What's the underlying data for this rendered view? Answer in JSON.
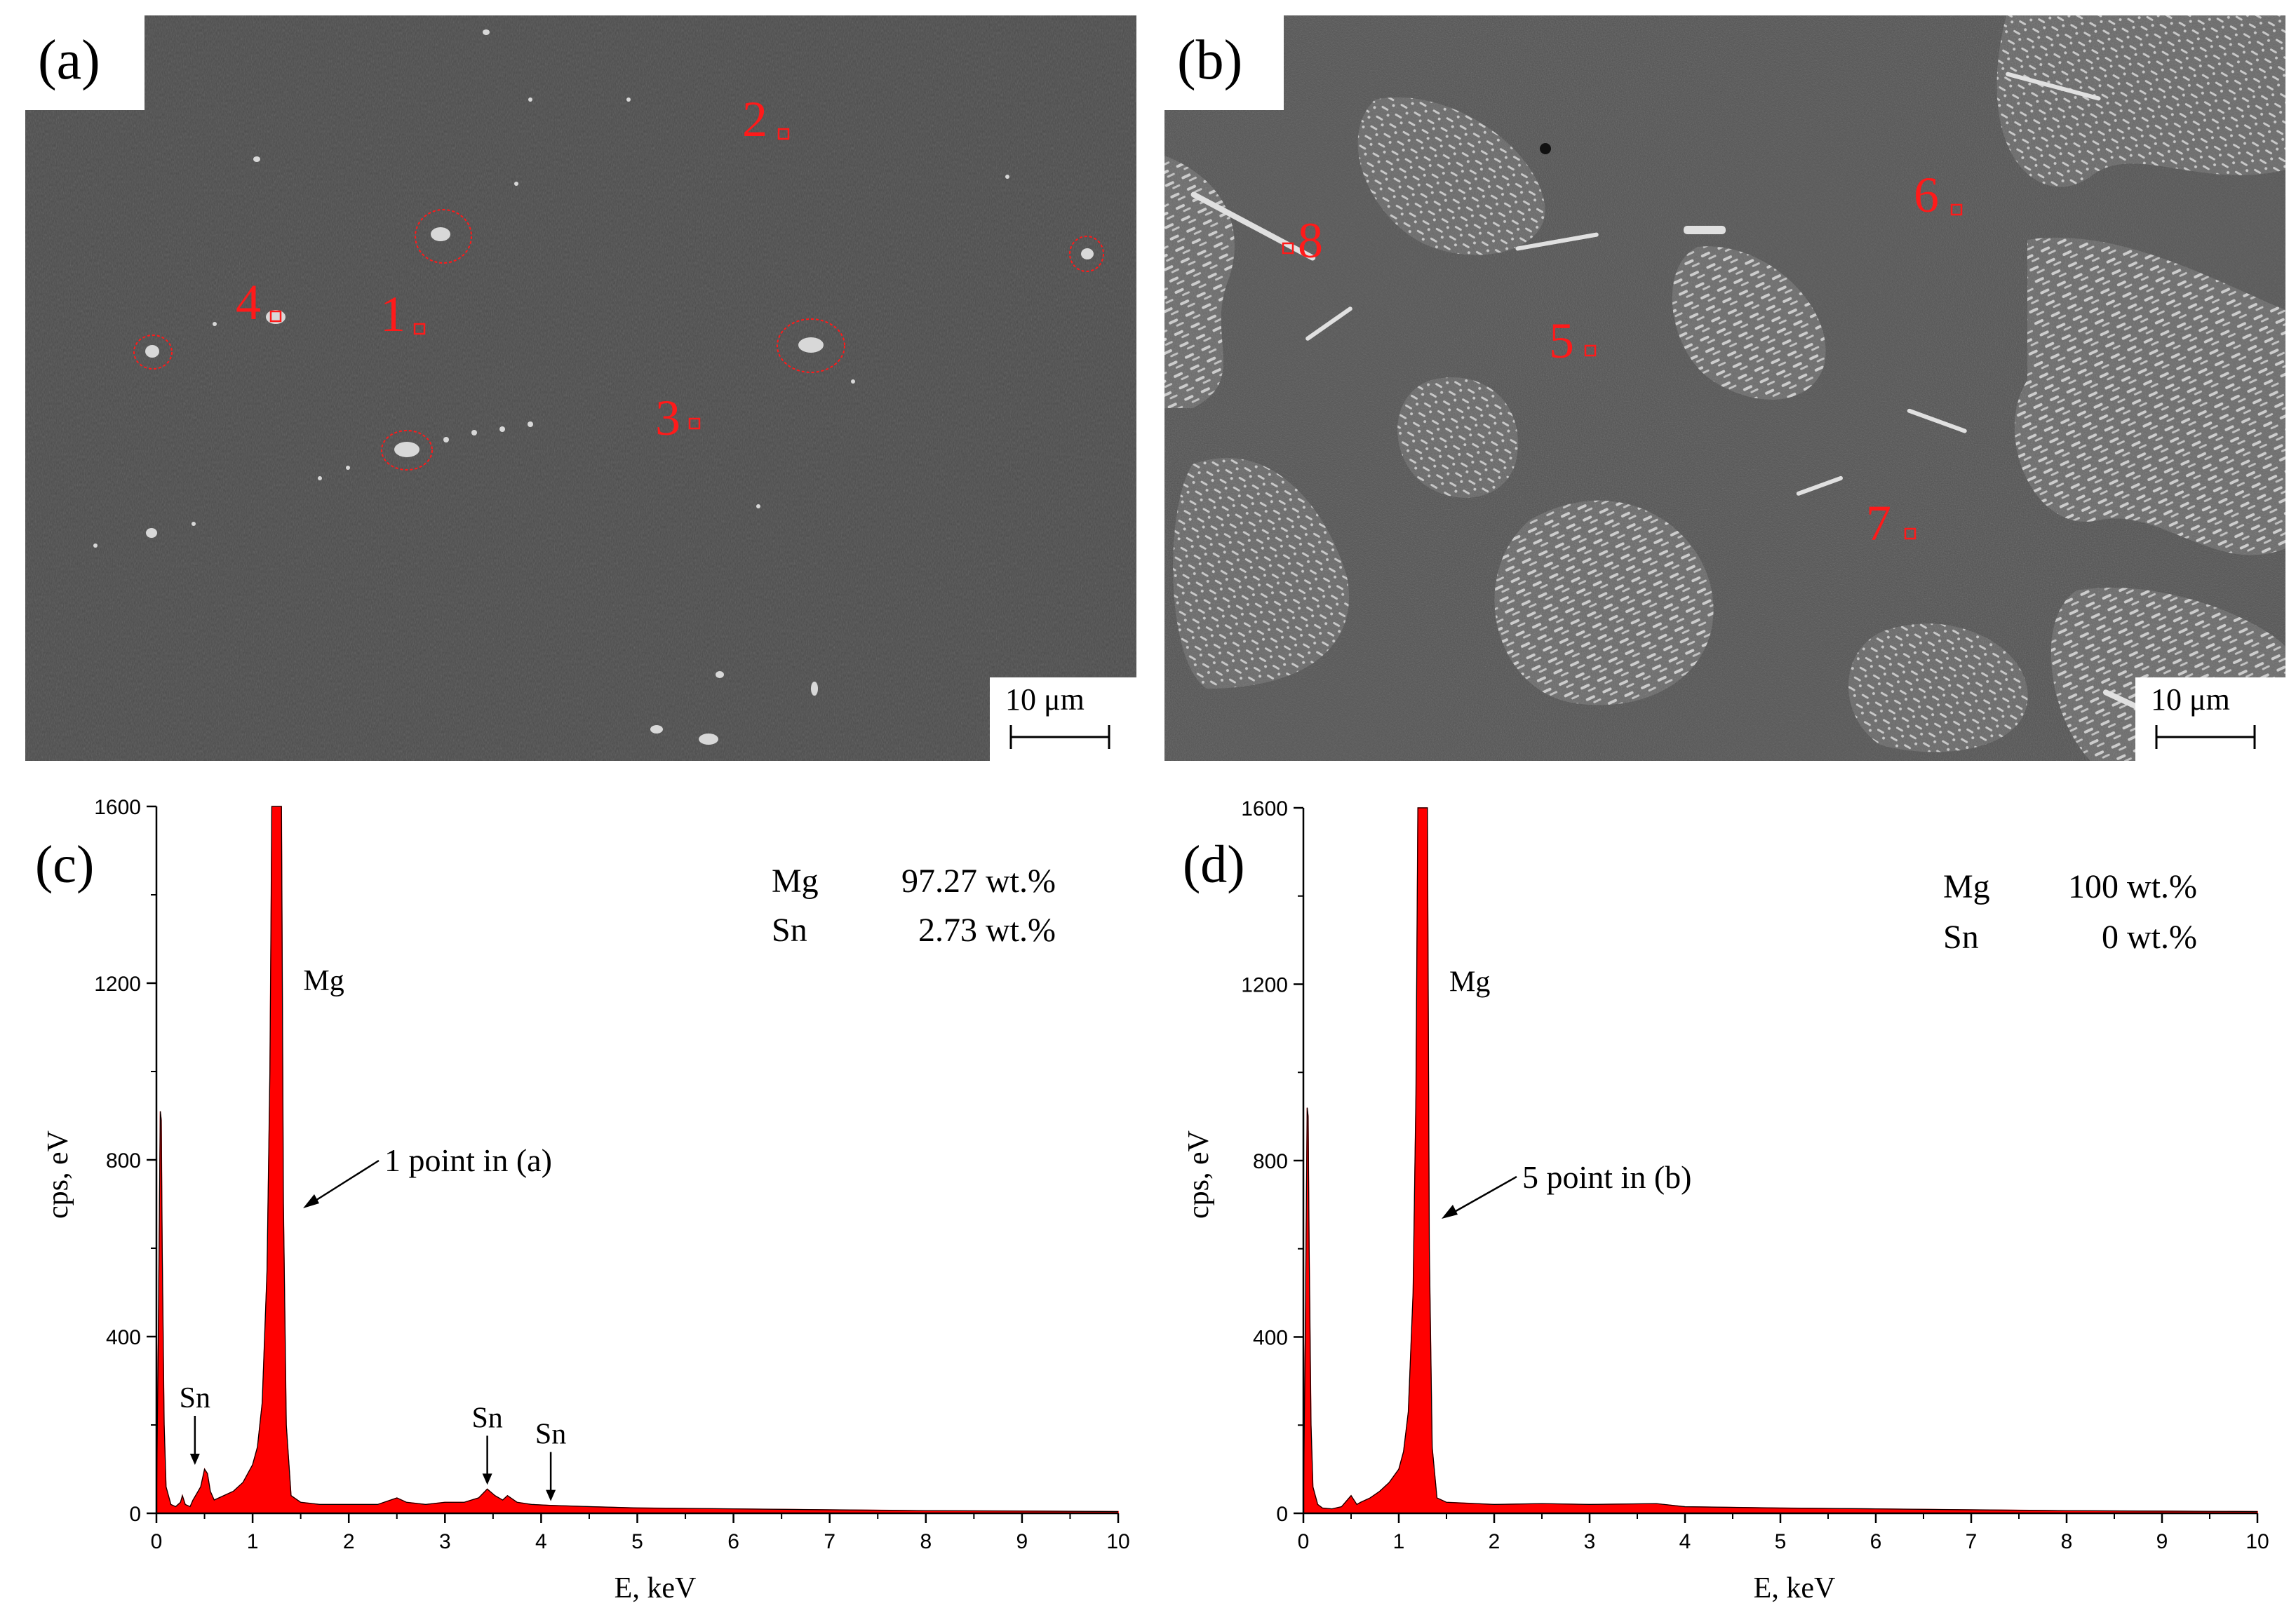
{
  "figure": {
    "panels": {
      "a": {
        "label": "(a)",
        "scale_bar": "10 μm",
        "points": [
          "1",
          "2",
          "3",
          "4"
        ]
      },
      "b": {
        "label": "(b)",
        "scale_bar": "10 μm",
        "points": [
          "5",
          "6",
          "7",
          "8"
        ]
      }
    },
    "colors": {
      "spectrum_fill": "#ff0000",
      "marker": "#ff1a1a",
      "sem_background": "#4b4b4b"
    }
  },
  "chart_data": [
    {
      "type": "area",
      "panel": "(c)",
      "xlabel": "E, keV",
      "ylabel": "cps, eV",
      "xlim": [
        0,
        10
      ],
      "ylim": [
        0,
        1600
      ],
      "x_ticks": [
        0,
        1,
        2,
        3,
        4,
        5,
        6,
        7,
        8,
        9,
        10
      ],
      "y_ticks": [
        0,
        400,
        800,
        1200,
        1600
      ],
      "spectrum": {
        "x": [
          0,
          0.02,
          0.04,
          0.05,
          0.06,
          0.08,
          0.1,
          0.15,
          0.2,
          0.25,
          0.27,
          0.3,
          0.35,
          0.38,
          0.42,
          0.46,
          0.5,
          0.53,
          0.56,
          0.6,
          0.7,
          0.8,
          0.9,
          1.0,
          1.05,
          1.1,
          1.15,
          1.18,
          1.2,
          1.22,
          1.25,
          1.28,
          1.3,
          1.32,
          1.35,
          1.4,
          1.5,
          1.7,
          2.0,
          2.3,
          2.5,
          2.6,
          2.8,
          3.0,
          3.2,
          3.35,
          3.44,
          3.52,
          3.6,
          3.65,
          3.75,
          3.9,
          4.1,
          4.5,
          5,
          6,
          7,
          8,
          9,
          10
        ],
        "y": [
          0,
          400,
          910,
          890,
          600,
          200,
          60,
          20,
          15,
          25,
          40,
          20,
          15,
          30,
          45,
          60,
          100,
          90,
          50,
          30,
          40,
          50,
          70,
          110,
          150,
          250,
          550,
          1000,
          1600,
          1600,
          1600,
          1600,
          1600,
          700,
          200,
          40,
          25,
          20,
          20,
          20,
          35,
          25,
          20,
          25,
          25,
          35,
          55,
          40,
          30,
          40,
          25,
          20,
          18,
          15,
          12,
          10,
          8,
          6,
          5,
          4
        ]
      },
      "peak_labels": [
        {
          "text": "Mg",
          "x": 1.25
        },
        {
          "text": "Sn",
          "x": 0.4
        },
        {
          "text": "Sn",
          "x": 3.44
        },
        {
          "text": "Sn",
          "x": 4.1
        }
      ],
      "annotation": "1 point in (a)",
      "composition": [
        {
          "element": "Mg",
          "value": "97.27 wt.%"
        },
        {
          "element": "Sn",
          "value": "2.73 wt.%"
        }
      ]
    },
    {
      "type": "area",
      "panel": "(d)",
      "xlabel": "E, keV",
      "ylabel": "cps, eV",
      "xlim": [
        0,
        10
      ],
      "ylim": [
        0,
        1600
      ],
      "x_ticks": [
        0,
        1,
        2,
        3,
        4,
        5,
        6,
        7,
        8,
        9,
        10
      ],
      "y_ticks": [
        0,
        400,
        800,
        1200,
        1600
      ],
      "spectrum": {
        "x": [
          0,
          0.02,
          0.04,
          0.05,
          0.06,
          0.08,
          0.1,
          0.15,
          0.2,
          0.3,
          0.4,
          0.5,
          0.53,
          0.56,
          0.6,
          0.7,
          0.8,
          0.9,
          1.0,
          1.05,
          1.1,
          1.15,
          1.18,
          1.2,
          1.22,
          1.25,
          1.28,
          1.3,
          1.32,
          1.35,
          1.4,
          1.5,
          2.0,
          2.5,
          3.0,
          3.7,
          4.0,
          5,
          6,
          7,
          8,
          9,
          10
        ],
        "y": [
          0,
          400,
          920,
          900,
          600,
          200,
          60,
          20,
          12,
          10,
          15,
          40,
          30,
          20,
          25,
          35,
          50,
          70,
          100,
          140,
          230,
          500,
          950,
          1600,
          1600,
          1600,
          1600,
          1600,
          600,
          150,
          35,
          25,
          20,
          22,
          20,
          22,
          15,
          12,
          10,
          8,
          6,
          5,
          4
        ]
      },
      "peak_labels": [
        {
          "text": "Mg",
          "x": 1.25
        }
      ],
      "annotation": "5 point in (b)",
      "composition": [
        {
          "element": "Mg",
          "value": "100 wt.%"
        },
        {
          "element": "Sn",
          "value": "0 wt.%"
        }
      ]
    }
  ]
}
